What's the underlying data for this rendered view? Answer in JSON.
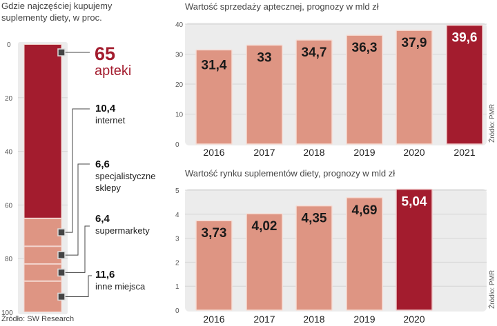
{
  "chart_data": [
    {
      "type": "bar",
      "stacked": true,
      "title": "Gdzie najczęściej kupujemy suplementy diety, w proc.",
      "ylim": [
        0,
        100
      ],
      "yticks": [
        "0",
        "20",
        "40",
        "60",
        "80",
        "100"
      ],
      "segments": [
        {
          "label": "apteki",
          "value": 65,
          "value_label": "65",
          "color": "#a31c2e"
        },
        {
          "label": "internet",
          "value": 10.4,
          "value_label": "10,4",
          "color": "#de9583"
        },
        {
          "label": "specjalistyczne sklepy",
          "label_lines": [
            "specjalistyczne",
            "sklepy"
          ],
          "value": 6.6,
          "value_label": "6,6",
          "color": "#de9583"
        },
        {
          "label": "supermarkety",
          "value": 6.4,
          "value_label": "6,4",
          "color": "#de9583"
        },
        {
          "label": "inne miejsca",
          "value": 11.6,
          "value_label": "11,6",
          "color": "#de9583"
        }
      ],
      "source": "Źródło: SW Research"
    },
    {
      "type": "bar",
      "title": "Wartość sprzedaży aptecznej, prognozy w mld zł",
      "categories": [
        "2016",
        "2017",
        "2018",
        "2019",
        "2020",
        "2021"
      ],
      "values": [
        31.4,
        33,
        34.7,
        36.3,
        37.9,
        39.6
      ],
      "value_labels": [
        "31,4",
        "33",
        "34,7",
        "36,3",
        "37,9",
        "39,6"
      ],
      "highlight": "2021",
      "ylim": [
        0,
        40
      ],
      "yticks": [
        "0",
        "10",
        "20",
        "30",
        "40"
      ],
      "grid": true,
      "source": "Źródło: PMR"
    },
    {
      "type": "bar",
      "title": "Wartość rynku suplementów diety, prognozy w mld zł",
      "categories": [
        "2016",
        "2017",
        "2018",
        "2019",
        "2020"
      ],
      "values": [
        3.73,
        4.02,
        4.35,
        4.69,
        5.04
      ],
      "value_labels": [
        "3,73",
        "4,02",
        "4,35",
        "4,69",
        "5,04"
      ],
      "highlight": "2020",
      "ylim": [
        0,
        5
      ],
      "yticks": [
        "0",
        "1",
        "2",
        "3",
        "4",
        "5"
      ],
      "grid": true,
      "source": "Źródło: PMR"
    }
  ],
  "colors": {
    "highlight": "#a31c2e",
    "bar": "#de9583",
    "panel": "#ececec",
    "marker": "#444444"
  }
}
